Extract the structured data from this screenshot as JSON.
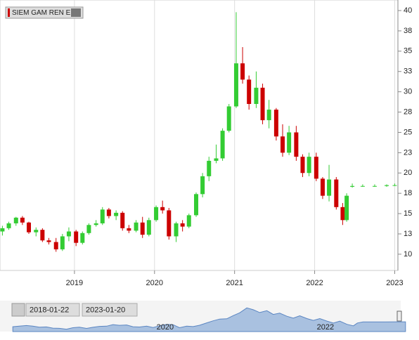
{
  "chart_data": {
    "type": "candlestick",
    "xlim": [
      2018.07,
      2023.04
    ],
    "xticks": [
      2019,
      2020,
      2021,
      2022,
      2023
    ],
    "ylim": [
      8.0,
      41.3
    ],
    "yticks": [
      10,
      {
        "value": 12.5,
        "label": "13"
      },
      15,
      {
        "value": 17.5,
        "label": "18"
      },
      20,
      {
        "value": 22.5,
        "label": "23"
      },
      25,
      {
        "value": 27.5,
        "label": "28"
      },
      30,
      {
        "value": 32.5,
        "label": "33"
      },
      35,
      {
        "value": 37.5,
        "label": "38"
      },
      40
    ],
    "grid": true,
    "up_color": "#33cc33",
    "down_color": "#cc0000",
    "series": [
      {
        "name": "SIEM GAM REN E",
        "x": [
          2018.1,
          2018.18,
          2018.27,
          2018.35,
          2018.43,
          2018.52,
          2018.6,
          2018.68,
          2018.77,
          2018.85,
          2018.93,
          2019.02,
          2019.1,
          2019.18,
          2019.27,
          2019.35,
          2019.43,
          2019.52,
          2019.6,
          2019.68,
          2019.77,
          2019.85,
          2019.93,
          2020.02,
          2020.1,
          2020.18,
          2020.27,
          2020.35,
          2020.43,
          2020.52,
          2020.6,
          2020.68,
          2020.77,
          2020.85,
          2020.93,
          2021.02,
          2021.1,
          2021.18,
          2021.27,
          2021.35,
          2021.43,
          2021.52,
          2021.6,
          2021.68,
          2021.77,
          2021.85,
          2021.93,
          2022.02,
          2022.1,
          2022.18,
          2022.27,
          2022.35,
          2022.4,
          2022.47,
          2022.6,
          2022.75,
          2022.9,
          2023.0
        ],
        "open": [
          12.8,
          13.2,
          13.8,
          14.5,
          13.9,
          12.7,
          13.0,
          11.7,
          11.5,
          10.6,
          12.2,
          12.8,
          11.4,
          12.6,
          13.6,
          13.8,
          15.5,
          14.7,
          15.1,
          13.2,
          12.9,
          13.9,
          12.4,
          14.2,
          15.8,
          15.4,
          12.2,
          13.8,
          13.4,
          14.8,
          17.4,
          19.6,
          21.5,
          21.8,
          25.2,
          28.2,
          33.5,
          31.5,
          28.5,
          30.5,
          26.5,
          27.8,
          24.5,
          22.5,
          25.0,
          22.0,
          20.0,
          22.0,
          19.3,
          17.2,
          19.2,
          15.8,
          14.2,
          18.3,
          18.4,
          18.4,
          18.4,
          18.5
        ],
        "high": [
          13.5,
          14.0,
          14.6,
          14.7,
          14.0,
          13.3,
          13.2,
          12.0,
          12.0,
          12.5,
          13.3,
          13.0,
          12.8,
          13.8,
          14.2,
          15.8,
          15.7,
          15.4,
          15.3,
          13.6,
          14.2,
          14.6,
          14.5,
          16.0,
          16.6,
          15.7,
          14.0,
          14.2,
          15.0,
          17.6,
          20.0,
          22.0,
          23.5,
          25.5,
          28.5,
          39.8,
          35.5,
          32.0,
          32.5,
          31.0,
          29.0,
          28.0,
          26.0,
          25.8,
          25.8,
          22.3,
          22.5,
          22.5,
          19.5,
          21.0,
          19.5,
          16.3,
          17.5,
          18.7,
          18.6,
          18.6,
          18.6,
          18.7
        ],
        "low": [
          12.3,
          13.0,
          13.5,
          13.6,
          12.5,
          12.2,
          11.5,
          11.2,
          10.3,
          10.4,
          11.6,
          11.0,
          11.2,
          12.4,
          13.4,
          13.6,
          14.4,
          14.2,
          12.9,
          12.6,
          12.7,
          12.0,
          12.2,
          14.0,
          15.0,
          11.8,
          11.5,
          12.8,
          13.2,
          14.6,
          17.0,
          19.0,
          21.2,
          21.5,
          25.0,
          28.0,
          31.0,
          27.8,
          28.0,
          26.0,
          25.5,
          24.0,
          22.0,
          22.2,
          21.5,
          19.5,
          19.6,
          19.0,
          16.8,
          16.5,
          15.5,
          13.6,
          14.0,
          18.2,
          18.3,
          18.3,
          18.3,
          18.4
        ],
        "close": [
          13.2,
          13.8,
          14.5,
          13.9,
          12.7,
          13.0,
          11.7,
          11.5,
          10.6,
          12.2,
          12.8,
          11.4,
          12.6,
          13.6,
          13.8,
          15.5,
          14.7,
          15.1,
          13.2,
          12.9,
          13.9,
          12.4,
          14.2,
          15.8,
          15.4,
          12.2,
          13.8,
          13.4,
          14.8,
          17.4,
          19.6,
          21.5,
          21.8,
          25.2,
          28.2,
          33.5,
          31.5,
          28.5,
          30.5,
          26.5,
          27.8,
          24.5,
          22.5,
          25.0,
          22.0,
          20.0,
          22.0,
          19.3,
          17.2,
          19.2,
          15.8,
          14.2,
          17.2,
          18.4,
          18.4,
          18.4,
          18.5,
          18.5
        ]
      }
    ],
    "navigator": {
      "xlim": [
        2017.94,
        2022.94
      ],
      "xticks": [
        2020,
        2022
      ],
      "start": "2018-01-22",
      "end": "2023-01-20"
    }
  }
}
